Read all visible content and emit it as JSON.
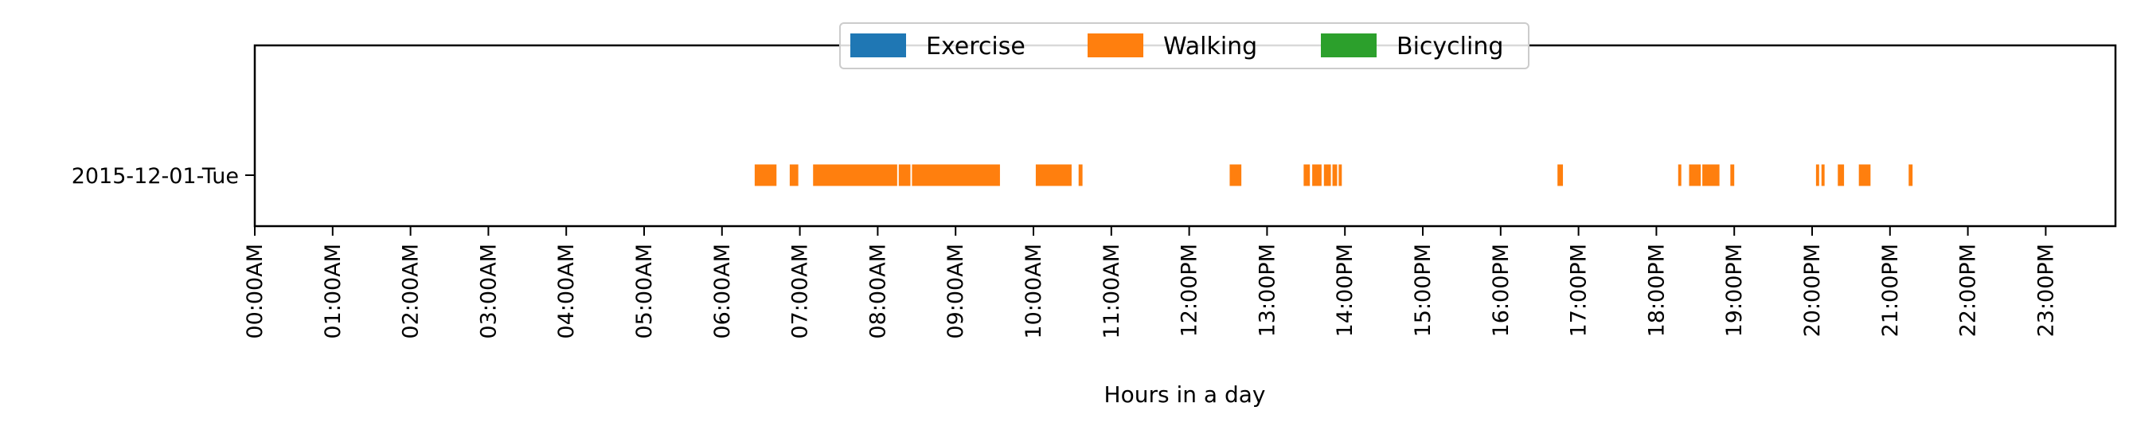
{
  "chart_data": {
    "type": "timeline",
    "xlabel": "Hours in a day",
    "ylabel": "",
    "xlim": [
      0,
      24
    ],
    "x_ticks": [
      0,
      1,
      2,
      3,
      4,
      5,
      6,
      7,
      8,
      9,
      10,
      11,
      12,
      13,
      14,
      15,
      16,
      17,
      18,
      19,
      20,
      21,
      22,
      23
    ],
    "x_tick_labels": [
      "00:00AM",
      "01:00AM",
      "02:00AM",
      "03:00AM",
      "04:00AM",
      "05:00AM",
      "06:00AM",
      "07:00AM",
      "08:00AM",
      "09:00AM",
      "10:00AM",
      "11:00AM",
      "12:00PM",
      "13:00PM",
      "14:00PM",
      "15:00PM",
      "16:00PM",
      "17:00PM",
      "18:00PM",
      "19:00PM",
      "20:00PM",
      "21:00PM",
      "22:00PM",
      "23:00PM"
    ],
    "rows": [
      "2015-12-01-Tue"
    ],
    "legend": {
      "placement": "top-center",
      "entries": [
        {
          "name": "Exercise",
          "color": "#1f77b4"
        },
        {
          "name": "Walking",
          "color": "#ff7f0e"
        },
        {
          "name": "Bicycling",
          "color": "#2ca02c"
        }
      ]
    },
    "series": [
      {
        "name": "Exercise",
        "color": "#1f77b4",
        "segments": []
      },
      {
        "name": "Walking",
        "color": "#ff7f0e",
        "segments": [
          {
            "row": 0,
            "start": 6.42,
            "end": 6.7
          },
          {
            "row": 0,
            "start": 6.87,
            "end": 6.98
          },
          {
            "row": 0,
            "start": 7.17,
            "end": 8.25
          },
          {
            "row": 0,
            "start": 8.27,
            "end": 8.42
          },
          {
            "row": 0,
            "start": 8.44,
            "end": 9.57
          },
          {
            "row": 0,
            "start": 10.03,
            "end": 10.49
          },
          {
            "row": 0,
            "start": 10.58,
            "end": 10.63
          },
          {
            "row": 0,
            "start": 12.52,
            "end": 12.67
          },
          {
            "row": 0,
            "start": 13.47,
            "end": 13.55
          },
          {
            "row": 0,
            "start": 13.58,
            "end": 13.7
          },
          {
            "row": 0,
            "start": 13.73,
            "end": 13.82
          },
          {
            "row": 0,
            "start": 13.84,
            "end": 13.9
          },
          {
            "row": 0,
            "start": 13.92,
            "end": 13.96
          },
          {
            "row": 0,
            "start": 16.73,
            "end": 16.8
          },
          {
            "row": 0,
            "start": 18.28,
            "end": 18.32
          },
          {
            "row": 0,
            "start": 18.42,
            "end": 18.57
          },
          {
            "row": 0,
            "start": 18.59,
            "end": 18.81
          },
          {
            "row": 0,
            "start": 18.95,
            "end": 19.0
          },
          {
            "row": 0,
            "start": 20.05,
            "end": 20.09
          },
          {
            "row": 0,
            "start": 20.12,
            "end": 20.16
          },
          {
            "row": 0,
            "start": 20.33,
            "end": 20.41
          },
          {
            "row": 0,
            "start": 20.6,
            "end": 20.75
          },
          {
            "row": 0,
            "start": 21.24,
            "end": 21.29
          }
        ]
      },
      {
        "name": "Bicycling",
        "color": "#2ca02c",
        "segments": []
      }
    ],
    "grid": false
  }
}
